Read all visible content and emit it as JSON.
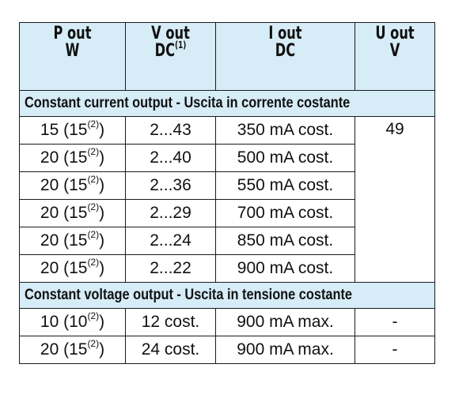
{
  "headers": [
    {
      "line1": "P out",
      "line2": "W",
      "sup": ""
    },
    {
      "line1": "V out",
      "line2": "DC",
      "sup": "(1)"
    },
    {
      "line1": "I out",
      "line2": "DC",
      "sup": ""
    },
    {
      "line1": "U out",
      "line2": "V",
      "sup": ""
    }
  ],
  "sections": [
    {
      "title": "Constant current output - Uscita in corrente costante",
      "u_out": "49",
      "rows": [
        {
          "p": "15",
          "p_alt": "15",
          "v": "2...43",
          "i": "350 mA cost."
        },
        {
          "p": "20",
          "p_alt": "15",
          "v": "2...40",
          "i": "500 mA cost."
        },
        {
          "p": "20",
          "p_alt": "15",
          "v": "2...36",
          "i": "550 mA cost."
        },
        {
          "p": "20",
          "p_alt": "15",
          "v": "2...29",
          "i": "700 mA cost."
        },
        {
          "p": "20",
          "p_alt": "15",
          "v": "2...24",
          "i": "850 mA cost."
        },
        {
          "p": "20",
          "p_alt": "15",
          "v": "2...22",
          "i": "900 mA cost."
        }
      ]
    },
    {
      "title": "Constant voltage output - Uscita in tensione costante",
      "rows": [
        {
          "p": "10",
          "p_alt": "10",
          "v": "12 cost.",
          "i": "900 mA max.",
          "u": "-"
        },
        {
          "p": "20",
          "p_alt": "15",
          "v": "24 cost.",
          "i": "900 mA max.",
          "u": "-"
        }
      ]
    }
  ],
  "footnote_mark": "(2)",
  "colors": {
    "header_bg": "#d6ecf7",
    "border": "#1a1a1a"
  }
}
